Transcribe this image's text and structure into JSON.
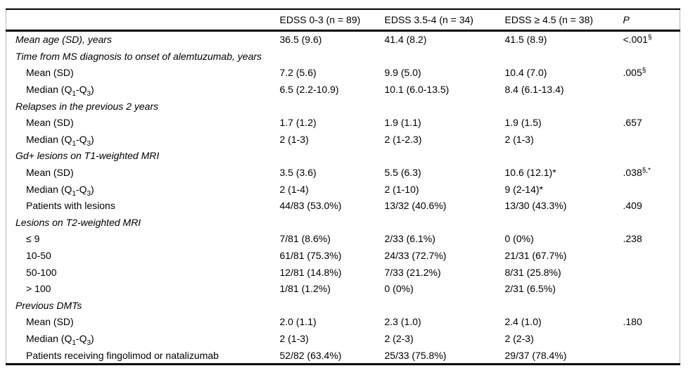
{
  "table": {
    "columns": [
      "",
      "EDSS 0-3 (n = 89)",
      "EDSS 3.5-4 (n = 34)",
      "EDSS ≥ 4.5 (n = 38)",
      "P"
    ],
    "border_color": "#000000",
    "side_rule_color": "#b5b5b5",
    "text_color": "#000000",
    "rows": [
      {
        "type": "toplevel",
        "label": "Mean age (SD), years",
        "c1": "36.5 (9.6)",
        "c2": "41.4 (8.2)",
        "c3": "41.5 (8.9)",
        "p": "<.001{sup:§}"
      },
      {
        "type": "section",
        "label": "Time from MS diagnosis to onset of alemtuzumab, years"
      },
      {
        "type": "sub",
        "label": "Mean (SD)",
        "c1": "7.2 (5.6)",
        "c2": "9.9 (5.0)",
        "c3": "10.4 (7.0)",
        "p": ".005{sup:§}"
      },
      {
        "type": "sub",
        "label": "Median (Q{sub:1}-Q{sub:3})",
        "c1": "6.5 (2.2-10.9)",
        "c2": "10.1 (6.0-13.5)",
        "c3": "8.4 (6.1-13.4)",
        "p": ""
      },
      {
        "type": "section",
        "label": "Relapses in the previous 2 years"
      },
      {
        "type": "sub",
        "label": "Mean (SD)",
        "c1": "1.7 (1.2)",
        "c2": "1.9 (1.1)",
        "c3": "1.9 (1.5)",
        "p": ".657"
      },
      {
        "type": "sub",
        "label": "Median (Q{sub:1}-Q{sub:3})",
        "c1": "2 (1-3)",
        "c2": "2 (1-2.3)",
        "c3": "2 (1-3)",
        "p": ""
      },
      {
        "type": "section",
        "label": "Gd+ lesions on T1-weighted MRI"
      },
      {
        "type": "sub",
        "label": "Mean (SD)",
        "c1": "3.5 (3.6)",
        "c2": "5.5 (6.3)",
        "c3": "10.6 (12.1)*",
        "p": ".038{sup:§,*}"
      },
      {
        "type": "sub",
        "label": "Median (Q{sub:1}-Q{sub:3})",
        "c1": "2 (1-4)",
        "c2": "2 (1-10)",
        "c3": "9 (2-14)*",
        "p": ""
      },
      {
        "type": "sub",
        "label": "Patients with lesions",
        "c1": "44/83 (53.0%)",
        "c2": "13/32 (40.6%)",
        "c3": "13/30 (43.3%)",
        "p": ".409"
      },
      {
        "type": "section",
        "label": "Lesions on T2-weighted MRI"
      },
      {
        "type": "sub",
        "label": "≤ 9",
        "c1": "7/81 (8.6%)",
        "c2": "2/33 (6.1%)",
        "c3": "0 (0%)",
        "p": ".238"
      },
      {
        "type": "sub",
        "label": "10-50",
        "c1": "61/81 (75.3%)",
        "c2": "24/33 (72.7%)",
        "c3": "21/31 (67.7%)",
        "p": ""
      },
      {
        "type": "sub",
        "label": "50-100",
        "c1": "12/81 (14.8%)",
        "c2": "7/33 (21.2%)",
        "c3": "8/31 (25.8%)",
        "p": ""
      },
      {
        "type": "sub",
        "label": "> 100",
        "c1": "1/81 (1.2%)",
        "c2": "0 (0%)",
        "c3": "2/31 (6.5%)",
        "p": ""
      },
      {
        "type": "section",
        "label": "Previous DMTs"
      },
      {
        "type": "sub",
        "label": "Mean (SD)",
        "c1": "2.0 (1.1)",
        "c2": "2.3 (1.0)",
        "c3": "2.4 (1.0)",
        "p": ".180"
      },
      {
        "type": "sub",
        "label": "Median (Q{sub:1}-Q{sub:3})",
        "c1": "2 (1-3)",
        "c2": "2 (2-3)",
        "c3": "2 (2-3)",
        "p": ""
      },
      {
        "type": "sub",
        "label": "Patients receiving fingolimod or natalizumab",
        "c1": "52/82 (63.4%)",
        "c2": "25/33 (75.8%)",
        "c3": "29/37 (78.4%)",
        "p": ""
      }
    ]
  }
}
